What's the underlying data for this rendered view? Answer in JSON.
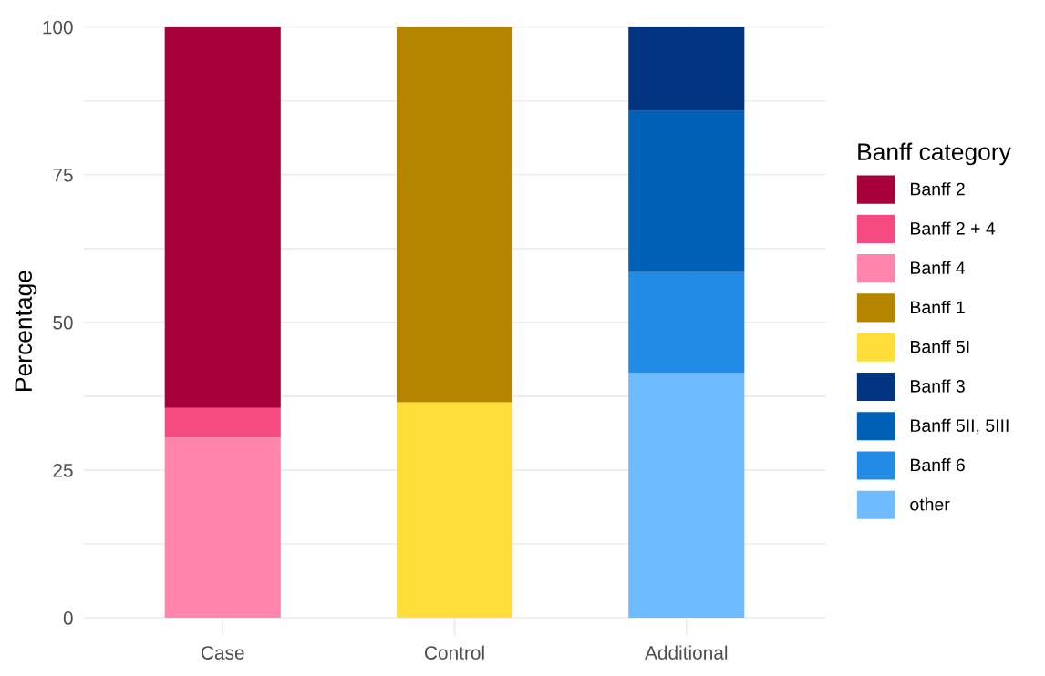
{
  "chart_data": {
    "type": "bar",
    "stacked": true,
    "ylabel": "Percentage",
    "legend_title": "Banff category",
    "legend": "right",
    "grid": true,
    "categories": [
      "Case",
      "Control",
      "Additional"
    ],
    "ylim": [
      -3,
      100
    ],
    "yticks": [
      0,
      {
        "value": 12.5,
        "label": null
      },
      25,
      {
        "value": 37.5,
        "label": null
      },
      50,
      {
        "value": 62.5,
        "label": null
      },
      75,
      {
        "value": 87.5,
        "label": null
      },
      100
    ],
    "series": [
      {
        "name": "other",
        "color": "#6fbbff",
        "values": [
          null,
          null,
          41.5
        ]
      },
      {
        "name": "Banff 6",
        "color": "#228be6",
        "values": [
          null,
          null,
          17
        ]
      },
      {
        "name": "Banff 5II, 5III",
        "color": "#0060b5",
        "values": [
          null,
          null,
          27.3
        ]
      },
      {
        "name": "Banff 3",
        "color": "#003380",
        "values": [
          null,
          null,
          14.2
        ]
      },
      {
        "name": "Banff 5I",
        "color": "#ffde3a",
        "values": [
          null,
          36.5,
          null
        ]
      },
      {
        "name": "Banff 1",
        "color": "#b58500",
        "values": [
          null,
          63.5,
          null
        ]
      },
      {
        "name": "Banff 4",
        "color": "#ff85ad",
        "values": [
          30.5,
          null,
          null
        ]
      },
      {
        "name": "Banff 2 + 4",
        "color": "#f54b80",
        "values": [
          5,
          null,
          null
        ]
      },
      {
        "name": "Banff 2",
        "color": "#a8003b",
        "values": [
          64.5,
          null,
          null
        ]
      }
    ]
  }
}
